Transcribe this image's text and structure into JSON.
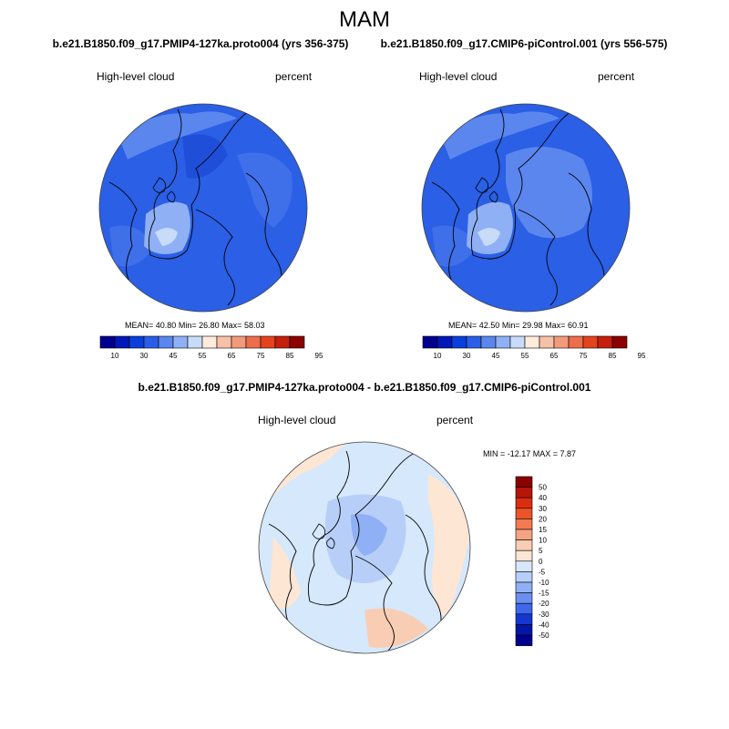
{
  "figure": {
    "season": "MAM"
  },
  "panels": [
    {
      "title": "b.e21.B1850.f09_g17.PMIP4-127ka.proto004 (yrs 356-375)",
      "variable": "High-level cloud",
      "units": "percent",
      "stats": {
        "mean_label": "MEAN=",
        "mean": "40.80",
        "min_label": "Min=",
        "min": "26.80",
        "max_label": "Max=",
        "max": "58.03"
      }
    },
    {
      "title": "b.e21.B1850.f09_g17.CMIP6-piControl.001 (yrs 556-575)",
      "variable": "High-level cloud",
      "units": "percent",
      "stats": {
        "mean_label": "MEAN=",
        "mean": "42.50",
        "min_label": "Min=",
        "min": "29.98",
        "max_label": "Max=",
        "max": "60.91"
      }
    },
    {
      "title": "b.e21.B1850.f09_g17.PMIP4-127ka.proto004 - b.e21.B1850.f09_g17.CMIP6-piControl.001",
      "variable": "High-level cloud",
      "units": "percent",
      "stats_text": "MIN = -12.17 MAX =   7.87"
    }
  ],
  "colorbar_abs": {
    "labels": [
      "10",
      "30",
      "45",
      "55",
      "65",
      "75",
      "85",
      "95"
    ],
    "colors": [
      "#00008f",
      "#0018b8",
      "#0a3fdc",
      "#2b5ee8",
      "#5b86ee",
      "#8fb0f4",
      "#c8dcfa",
      "#fdebdc",
      "#f6c1a6",
      "#f39a7b",
      "#ec6e4d",
      "#e3431f",
      "#c51f0e",
      "#8b0000"
    ]
  },
  "colorbar_diff": {
    "labels": [
      "50",
      "40",
      "30",
      "20",
      "15",
      "10",
      "5",
      "0",
      "-5",
      "-10",
      "-15",
      "-20",
      "-30",
      "-40",
      "-50"
    ],
    "colors": [
      "#8b0000",
      "#b8140a",
      "#d92f0f",
      "#ea5428",
      "#f27b50",
      "#f5a383",
      "#f9cdb3",
      "#fde6d4",
      "#d8e8fb",
      "#b7cff8",
      "#8fb0f4",
      "#6b8ff0",
      "#3f68ea",
      "#1437cf",
      "#0515a8",
      "#00008f"
    ]
  },
  "map_style": {
    "ocean_abs": "#2a5fe6",
    "ocean_diff": "#d6e8fb",
    "coast": "#000000"
  }
}
